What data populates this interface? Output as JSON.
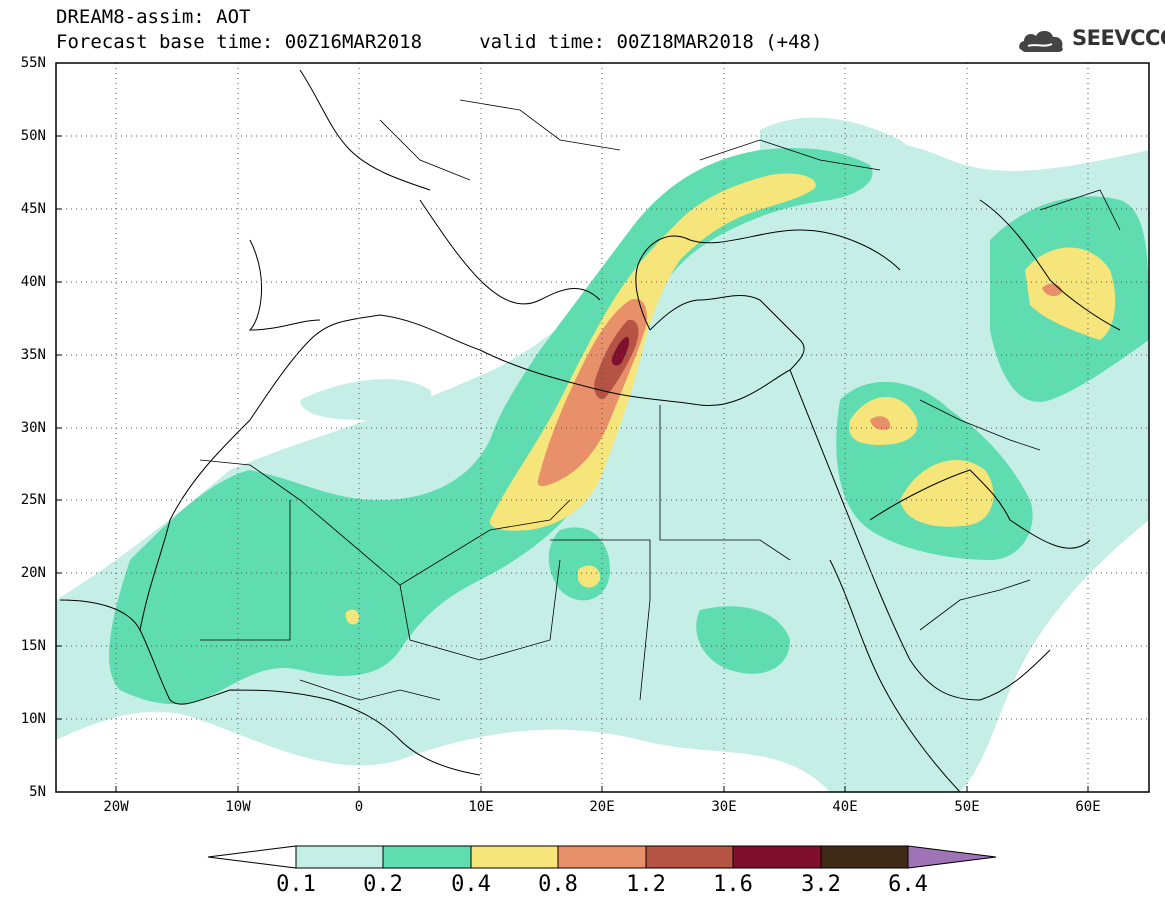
{
  "header": {
    "title_line1": "DREAM8-assim: AOT",
    "title_line2": "Forecast base time: 00Z16MAR2018     valid time: 00Z18MAR2018 (+48)",
    "logo_text": "SEEVCCC",
    "logo_icon": "cloud-icon"
  },
  "map": {
    "projection": "lat-lon",
    "lon_range": [
      -25,
      65
    ],
    "lat_range": [
      5,
      55
    ],
    "grid": "dotted",
    "lat_labels": [
      "55N",
      "50N",
      "45N",
      "40N",
      "35N",
      "30N",
      "25N",
      "20N",
      "15N",
      "10N",
      "5N"
    ],
    "lat_values": [
      55,
      50,
      45,
      40,
      35,
      30,
      25,
      20,
      15,
      10,
      5
    ],
    "lon_labels": [
      "20W",
      "10W",
      "0",
      "10E",
      "20E",
      "30E",
      "40E",
      "50E",
      "60E"
    ],
    "lon_values": [
      -20,
      -10,
      0,
      10,
      20,
      30,
      40,
      50,
      60
    ]
  },
  "colorbar": {
    "labels": [
      "0.1",
      "0.2",
      "0.4",
      "0.8",
      "1.2",
      "1.6",
      "3.2",
      "6.4"
    ],
    "colors": [
      "#c5efe6",
      "#5fdcb0",
      "#f5e57a",
      "#e8906a",
      "#b55444",
      "#7f0f2d",
      "#3e2a17"
    ],
    "under_color": "#ffffff",
    "over_color": "#9f73b5"
  }
}
